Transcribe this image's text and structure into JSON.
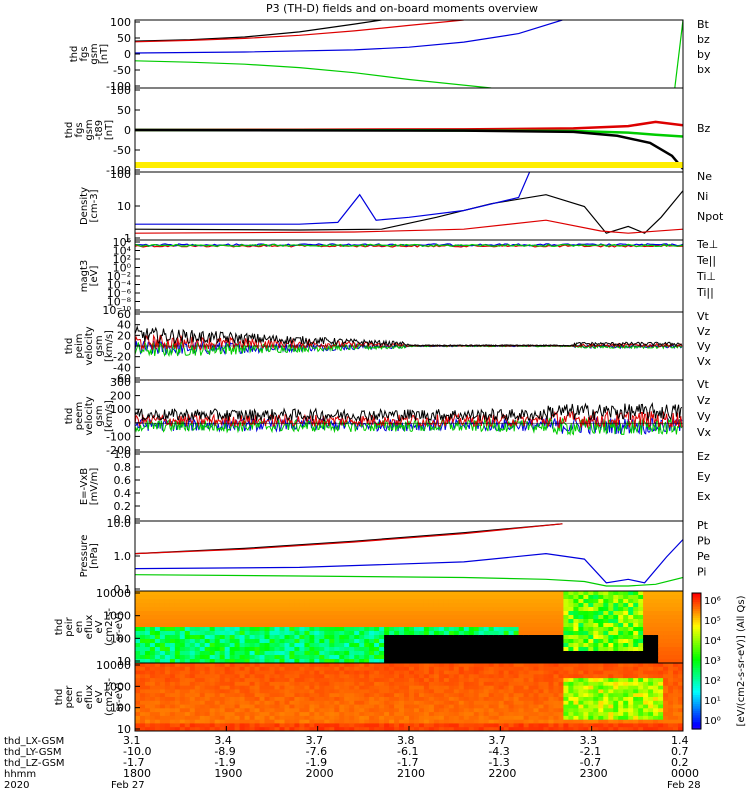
{
  "title": "P3 (TH-D) fields and on-board moments overview",
  "chart_data": [
    {
      "type": "line",
      "id": "fgs",
      "ylabel": [
        "thd",
        "fgs",
        "gsm",
        "[nT]"
      ],
      "ylim": [
        -100,
        100
      ],
      "yticks": [
        "100",
        "50",
        "0",
        "-50",
        "-100"
      ],
      "legend": [
        {
          "label": "Bt",
          "color": "#000000"
        },
        {
          "label": "bz",
          "color": "#dd0000"
        },
        {
          "label": "by",
          "color": "#00cc00"
        },
        {
          "label": "bx",
          "color": "#0000dd"
        }
      ],
      "series": [
        {
          "name": "Bt",
          "color": "#000000",
          "x": [
            0,
            0.1,
            0.2,
            0.3,
            0.4,
            0.45
          ],
          "y": [
            38,
            42,
            50,
            65,
            88,
            100
          ]
        },
        {
          "name": "bz",
          "color": "#dd0000",
          "x": [
            0,
            0.1,
            0.2,
            0.3,
            0.4,
            0.5,
            0.6
          ],
          "y": [
            36,
            40,
            46,
            55,
            68,
            84,
            100
          ]
        },
        {
          "name": "by",
          "color": "#00cc00",
          "x": [
            0,
            0.1,
            0.2,
            0.3,
            0.4,
            0.5,
            0.65
          ],
          "y": [
            -20,
            -24,
            -30,
            -40,
            -55,
            -75,
            -100
          ]
        },
        {
          "name": "bx",
          "color": "#0000dd",
          "x": [
            0,
            0.2,
            0.4,
            0.5,
            0.6,
            0.7,
            0.78
          ],
          "y": [
            3,
            6,
            12,
            20,
            35,
            60,
            100
          ]
        },
        {
          "name": "by-end",
          "color": "#00cc00",
          "x": [
            0.985,
            1.0
          ],
          "y": [
            -100,
            100
          ]
        }
      ]
    },
    {
      "type": "line",
      "id": "fgs-dz",
      "ylabel": [
        "thd",
        "fgs",
        "gsm",
        "-t89",
        "[nT]"
      ],
      "ylim": [
        -130,
        130
      ],
      "yticks": [
        "100",
        "50",
        "0",
        "-50",
        "-100"
      ],
      "legend": [
        {
          "label": "Bz",
          "color": "#dd0000"
        }
      ],
      "series": [
        {
          "name": "Bz",
          "color": "#dd0000",
          "x": [
            0,
            0.3,
            0.6,
            0.8,
            0.9,
            0.95,
            1.0
          ],
          "y": [
            0,
            1,
            2,
            5,
            12,
            25,
            15
          ]
        },
        {
          "name": "By",
          "color": "#00cc00",
          "x": [
            0,
            0.5,
            0.8,
            0.9,
            0.95,
            1.0
          ],
          "y": [
            0,
            -1,
            -3,
            -8,
            -15,
            -20
          ]
        },
        {
          "name": "Bt",
          "color": "#000000",
          "x": [
            0,
            0.6,
            0.8,
            0.88,
            0.94,
            0.98,
            1.0
          ],
          "y": [
            0,
            -2,
            -6,
            -18,
            -40,
            -80,
            -120
          ]
        }
      ],
      "bar_color": "#ffee00"
    },
    {
      "type": "line",
      "id": "density",
      "scale": "log",
      "ylabel": [
        "Density",
        "[cm-3]"
      ],
      "ylim": [
        0.2,
        200
      ],
      "yticks": [
        "100",
        "10",
        "1"
      ],
      "legend": [
        {
          "label": "Ne",
          "color": "#dd0000"
        },
        {
          "label": "Ni",
          "color": "#000000"
        },
        {
          "label": "Npot",
          "color": "#0000dd"
        }
      ],
      "series": [
        {
          "name": "Ni",
          "color": "#000000",
          "x": [
            0,
            0.3,
            0.45,
            0.55,
            0.65,
            0.75,
            0.82,
            0.86,
            0.9,
            0.93,
            0.96,
            1.0
          ],
          "y": [
            0.6,
            0.55,
            0.6,
            2,
            8,
            20,
            6,
            0.4,
            0.8,
            0.4,
            2,
            30
          ]
        },
        {
          "name": "Ne",
          "color": "#dd0000",
          "x": [
            0,
            0.4,
            0.6,
            0.75,
            0.85,
            0.9,
            1.0
          ],
          "y": [
            0.4,
            0.45,
            0.6,
            1.5,
            0.5,
            0.4,
            0.6
          ]
        },
        {
          "name": "Npot",
          "color": "#0000dd",
          "x": [
            0,
            0.3,
            0.37,
            0.41,
            0.44,
            0.5,
            0.6,
            0.7,
            0.72
          ],
          "y": [
            1,
            1,
            1.2,
            20,
            1.5,
            2,
            4,
            15,
            200
          ]
        }
      ]
    },
    {
      "type": "line",
      "id": "temperature",
      "scale": "log",
      "ylabel": [
        "magt3",
        "[eV]"
      ],
      "ylim": [
        "10^-10",
        "10^6"
      ],
      "yticks": [
        "10⁶",
        "10⁴",
        "10²",
        "10⁰",
        "10⁻²",
        "10⁻⁴",
        "10⁻⁶",
        "10⁻⁸",
        "10⁻¹⁰"
      ],
      "legend": [
        {
          "label": "Te⊥",
          "color": "#dd0000"
        },
        {
          "label": "Te||",
          "color": "#000000"
        },
        {
          "label": "Ti⊥",
          "color": "#0000dd"
        },
        {
          "label": "Ti||",
          "color": "#00cc00"
        }
      ],
      "series": [
        {
          "name": "Te⊥",
          "color": "#dd0000",
          "x": [
            0,
            1
          ],
          "y": [
            5.0,
            5.2
          ]
        },
        {
          "name": "Ti⊥",
          "color": "#0000dd",
          "x": [
            0,
            1
          ],
          "y": [
            5.4,
            5.5
          ]
        },
        {
          "name": "Ti||",
          "color": "#00cc00",
          "x": [
            0,
            1
          ],
          "y": [
            5.2,
            5.3
          ]
        }
      ]
    },
    {
      "type": "line",
      "id": "peim-velocity",
      "noisy": true,
      "ylabel": [
        "thd",
        "peim",
        "velocity",
        "gsm",
        "[km/s]"
      ],
      "ylim": [
        -60,
        60
      ],
      "yticks": [
        "60",
        "40",
        "20",
        "0",
        "-20",
        "-40",
        "-60"
      ],
      "legend": [
        {
          "label": "Vt",
          "color": "#000000"
        },
        {
          "label": "Vz",
          "color": "#dd0000"
        },
        {
          "label": "Vy",
          "color": "#00cc00"
        },
        {
          "label": "Vx",
          "color": "#0000dd"
        }
      ]
    },
    {
      "type": "line",
      "id": "peem-velocity",
      "noisy": true,
      "ylabel": [
        "thd",
        "peem",
        "velocity",
        "gsm",
        "[km/s]"
      ],
      "ylim": [
        -200,
        300
      ],
      "yticks": [
        "300",
        "200",
        "100",
        "0",
        "-100",
        "-200"
      ],
      "legend": [
        {
          "label": "Vt",
          "color": "#000000"
        },
        {
          "label": "Vz",
          "color": "#dd0000"
        },
        {
          "label": "Vy",
          "color": "#00cc00"
        },
        {
          "label": "Vx",
          "color": "#0000dd"
        }
      ]
    },
    {
      "type": "line",
      "id": "efield",
      "ylabel": [
        "E=-VxB",
        "[mV/m]"
      ],
      "ylim": [
        0.0,
        1.0
      ],
      "yticks": [
        "1.0",
        "0.8",
        "0.6",
        "0.4",
        "0.2",
        "0.0"
      ],
      "legend": [
        {
          "label": "Ez",
          "color": "#dd0000"
        },
        {
          "label": "Ey",
          "color": "#00cc00"
        },
        {
          "label": "Ex",
          "color": "#0000dd"
        }
      ],
      "series": []
    },
    {
      "type": "line",
      "id": "pressure",
      "scale": "log",
      "ylabel": [
        "Pressure",
        "[nPa]"
      ],
      "ylim": [
        0.015,
        20
      ],
      "yticks": [
        "10.0",
        "1.0",
        "0.1"
      ],
      "legend": [
        {
          "label": "Pt",
          "color": "#000000"
        },
        {
          "label": "Pb",
          "color": "#dd0000"
        },
        {
          "label": "Pe",
          "color": "#00cc00"
        },
        {
          "label": "Pi",
          "color": "#0000dd"
        }
      ],
      "series": [
        {
          "name": "Pt",
          "color": "#000000",
          "x": [
            0,
            0.2,
            0.4,
            0.6,
            0.78
          ],
          "y": [
            0.7,
            1.2,
            2.5,
            6,
            15
          ]
        },
        {
          "name": "Pb",
          "color": "#dd0000",
          "x": [
            0,
            0.2,
            0.4,
            0.6,
            0.78
          ],
          "y": [
            0.7,
            1.1,
            2.3,
            5.5,
            15
          ]
        },
        {
          "name": "Pi",
          "color": "#0000dd",
          "x": [
            0,
            0.3,
            0.6,
            0.75,
            0.82,
            0.86,
            0.9,
            0.93,
            0.97,
            1.0
          ],
          "y": [
            0.15,
            0.17,
            0.3,
            0.7,
            0.4,
            0.035,
            0.05,
            0.035,
            0.5,
            3
          ]
        },
        {
          "name": "Pe",
          "color": "#00cc00",
          "x": [
            0,
            0.3,
            0.6,
            0.75,
            0.82,
            0.86,
            0.9,
            0.95,
            1.0
          ],
          "y": [
            0.08,
            0.07,
            0.06,
            0.05,
            0.04,
            0.025,
            0.025,
            0.03,
            0.06
          ]
        }
      ]
    },
    {
      "type": "heatmap",
      "id": "peir",
      "ylabel": [
        "thd",
        "peir",
        "en",
        "eflux",
        "eV",
        "(cm2-s-",
        "sr-eV)"
      ],
      "yticks": [
        "10000",
        "1000",
        "100",
        "10"
      ]
    },
    {
      "type": "heatmap",
      "id": "peer",
      "ylabel": [
        "thd",
        "peer",
        "en",
        "eflux",
        "eV",
        "(cm2-s-",
        "sr-eV)"
      ],
      "yticks": [
        "10000",
        "1000",
        "100",
        "10"
      ]
    }
  ],
  "colorbar": {
    "label": "[eV/(cm2-s-sr-eV)] (All Qs)",
    "ticks": [
      "10⁶",
      "10⁵",
      "10⁴",
      "10³",
      "10²",
      "10¹",
      "10⁰"
    ]
  },
  "xaxis": {
    "rows": [
      {
        "label": "thd_LX-GSM",
        "values": [
          "3.1",
          "3.4",
          "3.7",
          "3.8",
          "3.7",
          "3.3",
          "1.4"
        ]
      },
      {
        "label": "thd_LY-GSM",
        "values": [
          "-10.0",
          "-8.9",
          "-7.6",
          "-6.1",
          "-4.3",
          "-2.1",
          "0.7"
        ]
      },
      {
        "label": "thd_LZ-GSM",
        "values": [
          "-1.7",
          "-1.9",
          "-1.9",
          "-1.7",
          "-1.3",
          "-0.7",
          "0.2"
        ]
      },
      {
        "label": "hhmm",
        "values": [
          "1800",
          "1900",
          "2000",
          "2100",
          "2200",
          "2300",
          "0000"
        ]
      }
    ],
    "year": "2020",
    "date_start": "Feb 27",
    "date_end": "Feb 28"
  }
}
